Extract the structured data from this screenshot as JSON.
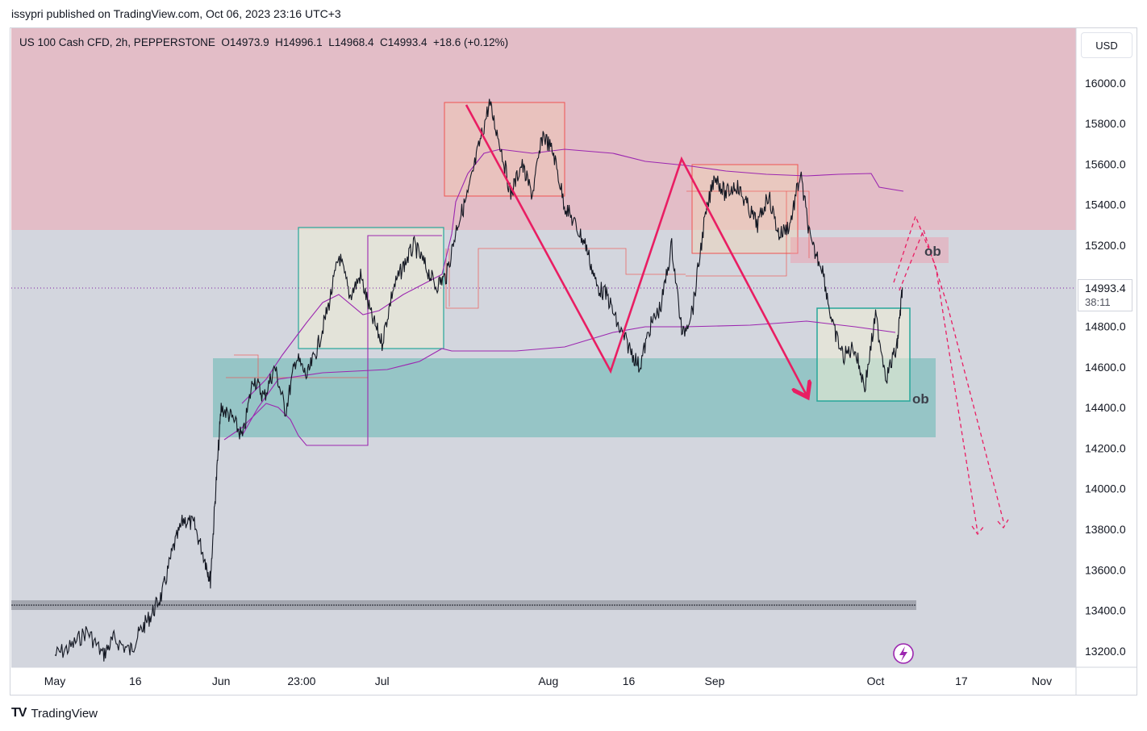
{
  "header": {
    "publisher_line": "issypri published on TradingView.com, Oct 06, 2023 23:16 UTC+3"
  },
  "symbol": {
    "info_line": "US 100 Cash CFD, 2h, PEPPERSTONE  O14973.9  H14996.1  L14968.4  C14993.4  +18.6 (+0.12%)"
  },
  "currency_button": "USD",
  "last_price": {
    "value": "14993.4",
    "countdown": "38:11"
  },
  "annotations": {
    "ob_upper": "ob",
    "ob_lower": "ob"
  },
  "footer": {
    "brand": "TradingView",
    "logo": "TV"
  },
  "colors": {
    "candles": "#131722",
    "supply_zone": "#e8a0ac",
    "demand_zone": "#26a69a",
    "zigzag": "#e91e63",
    "vwap": "#9c27b0",
    "price_line": "#7b1fa2"
  },
  "chart_data": {
    "type": "line",
    "title": "US 100 Cash CFD, 2h, PEPPERSTONE",
    "x_ticks": [
      "May",
      "16",
      "Jun",
      "23:00",
      "Jul",
      "Aug",
      "16",
      "Sep",
      "Oct",
      "17",
      "Nov"
    ],
    "y_ticks": [
      13200,
      13400,
      13600,
      13800,
      14000,
      14200,
      14400,
      14600,
      14800,
      15000,
      15200,
      15400,
      15600,
      15800,
      16000
    ],
    "y_tick_labels": [
      "13200.0",
      "13400.0",
      "13600.0",
      "13800.0",
      "14000.0",
      "14200.0",
      "14400.0",
      "14600.0",
      "14800.0",
      "15000.0",
      "15200.0",
      "15400.0",
      "15600.0",
      "15800.0",
      "16000.0"
    ],
    "ylim": [
      13120,
      16270
    ],
    "grid": false,
    "series": [
      {
        "values": [
          [
            "May 01",
            13180
          ],
          [
            "May 04",
            13220
          ],
          [
            "May 07",
            13300
          ],
          [
            "May 10",
            13180
          ],
          [
            "May 12",
            13260
          ],
          [
            "May 15",
            13200
          ],
          [
            "May 17",
            13300
          ],
          [
            "May 19",
            13380
          ],
          [
            "May 21",
            13480
          ],
          [
            "May 23",
            13700
          ],
          [
            "May 25",
            13850
          ],
          [
            "May 27",
            13820
          ],
          [
            "May 29",
            13650
          ],
          [
            "May 30",
            13550
          ],
          [
            "May 31",
            14000
          ],
          [
            "Jun 01",
            14400
          ],
          [
            "Jun 03",
            14350
          ],
          [
            "Jun 05",
            14250
          ],
          [
            "Jun 07",
            14550
          ],
          [
            "Jun 09",
            14450
          ],
          [
            "Jun 11",
            14600
          ],
          [
            "Jun 13",
            14380
          ],
          [
            "Jun 15",
            14650
          ],
          [
            "Jun 17",
            14550
          ],
          [
            "Jun 19",
            14700
          ],
          [
            "Jun 21",
            14900
          ],
          [
            "Jun 23",
            15150
          ],
          [
            "Jun 25",
            14950
          ],
          [
            "Jun 27",
            15050
          ],
          [
            "Jun 29",
            14850
          ],
          [
            "Jul 01",
            14720
          ],
          [
            "Jul 03",
            14980
          ],
          [
            "Jul 05",
            15100
          ],
          [
            "Jul 07",
            15200
          ],
          [
            "Jul 09",
            15100
          ],
          [
            "Jul 11",
            15000
          ],
          [
            "Jul 13",
            15050
          ],
          [
            "Jul 15",
            15300
          ],
          [
            "Jul 17",
            15450
          ],
          [
            "Jul 19",
            15680
          ],
          [
            "Jul 21",
            15900
          ],
          [
            "Jul 23",
            15700
          ],
          [
            "Jul 25",
            15450
          ],
          [
            "Jul 27",
            15600
          ],
          [
            "Jul 29",
            15450
          ],
          [
            "Jul 31",
            15750
          ],
          [
            "Aug 02",
            15650
          ],
          [
            "Aug 04",
            15400
          ],
          [
            "Aug 06",
            15300
          ],
          [
            "Aug 08",
            15200
          ],
          [
            "Aug 10",
            15000
          ],
          [
            "Aug 12",
            14950
          ],
          [
            "Aug 14",
            14800
          ],
          [
            "Aug 16",
            14700
          ],
          [
            "Aug 18",
            14600
          ],
          [
            "Aug 20",
            14800
          ],
          [
            "Aug 22",
            14900
          ],
          [
            "Aug 24",
            15200
          ],
          [
            "Aug 26",
            14750
          ],
          [
            "Aug 28",
            14900
          ],
          [
            "Aug 30",
            15300
          ],
          [
            "Sep 01",
            15550
          ],
          [
            "Sep 03",
            15450
          ],
          [
            "Sep 05",
            15500
          ],
          [
            "Sep 07",
            15400
          ],
          [
            "Sep 09",
            15300
          ],
          [
            "Sep 11",
            15450
          ],
          [
            "Sep 13",
            15250
          ],
          [
            "Sep 15",
            15300
          ],
          [
            "Sep 17",
            15550
          ],
          [
            "Sep 19",
            15200
          ],
          [
            "Sep 21",
            15100
          ],
          [
            "Sep 23",
            14800
          ],
          [
            "Sep 25",
            14650
          ],
          [
            "Sep 27",
            14700
          ],
          [
            "Sep 29",
            14500
          ],
          [
            "Oct 01",
            14850
          ],
          [
            "Oct 03",
            14550
          ],
          [
            "Oct 05",
            14700
          ],
          [
            "Oct 06",
            14993
          ]
        ]
      }
    ]
  }
}
